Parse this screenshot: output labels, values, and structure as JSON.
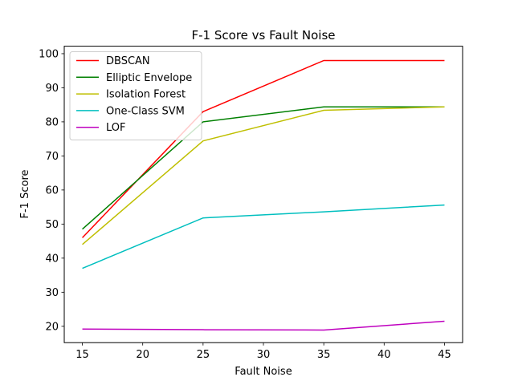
{
  "chart_data": {
    "type": "line",
    "title": "F-1 Score vs Fault Noise",
    "xlabel": "Fault Noise",
    "ylabel": "F-1 Score",
    "x": [
      15,
      25,
      35,
      45
    ],
    "xlim": [
      13.5,
      46.5
    ],
    "ylim": [
      15.2,
      102.2
    ],
    "xticks": [
      15,
      20,
      25,
      30,
      35,
      40,
      45
    ],
    "yticks": [
      20,
      30,
      40,
      50,
      60,
      70,
      80,
      90,
      100
    ],
    "grid": false,
    "legend_position": "upper-left",
    "series": [
      {
        "name": "DBSCAN",
        "color": "#ff0000",
        "values": [
          46,
          83,
          98,
          98
        ]
      },
      {
        "name": "Elliptic Envelope",
        "color": "#008000",
        "values": [
          48.5,
          80,
          84.4,
          84.4
        ]
      },
      {
        "name": "Isolation Forest",
        "color": "#bfbf00",
        "values": [
          44,
          74.4,
          83.4,
          84.4
        ]
      },
      {
        "name": "One-Class SVM",
        "color": "#00bfbf",
        "values": [
          37,
          51.8,
          53.6,
          55.6
        ]
      },
      {
        "name": "LOF",
        "color": "#bf00bf",
        "values": [
          19.2,
          19,
          18.9,
          21.5
        ]
      }
    ]
  }
}
